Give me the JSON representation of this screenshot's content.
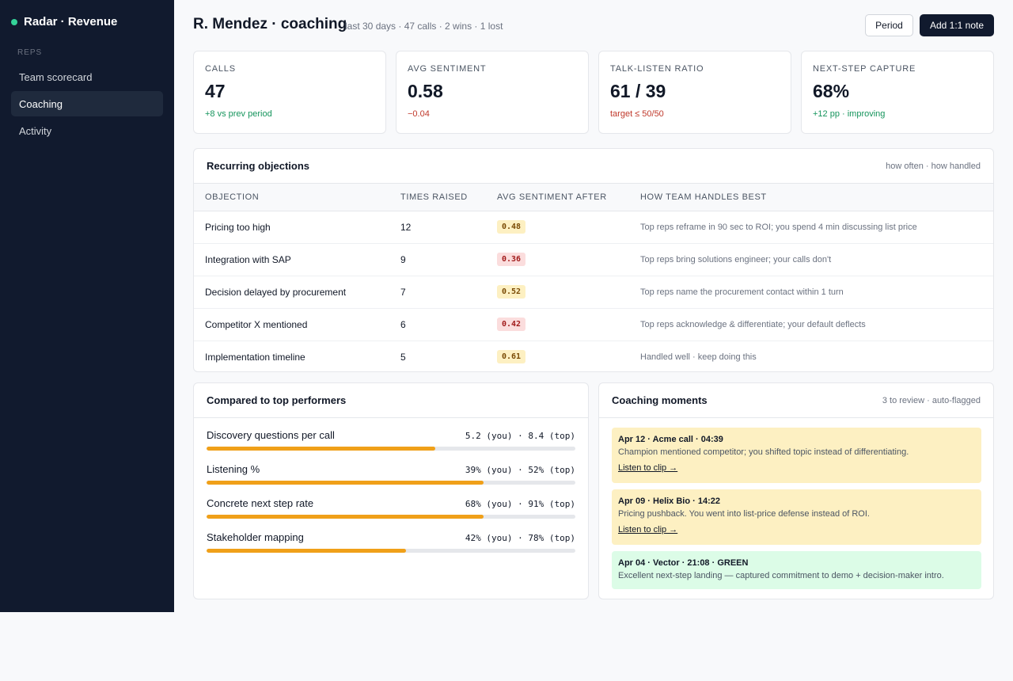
{
  "app": {
    "name": "Radar · Revenue",
    "status_color": "#34d399"
  },
  "sidebar": {
    "heading": "REPS",
    "items": [
      {
        "label": "Team scorecard",
        "active": false
      },
      {
        "label": "Coaching",
        "active": true
      },
      {
        "label": "Activity",
        "active": false
      }
    ]
  },
  "header": {
    "title": "R. Mendez · coaching",
    "subtitle": "last 30 days · 47 calls · 2 wins · 1 lost",
    "period_button": "Period",
    "note_button": "Add 1:1 note"
  },
  "stats": [
    {
      "label": "CALLS",
      "value": "47",
      "delta": "+8 vs prev period",
      "trend": "positive"
    },
    {
      "label": "AVG SENTIMENT",
      "value": "0.58",
      "delta": "−0.04",
      "trend": "negative"
    },
    {
      "label": "TALK-LISTEN RATIO",
      "value": "61 / 39",
      "delta": "target ≤ 50/50",
      "trend": "negative"
    },
    {
      "label": "NEXT-STEP CAPTURE",
      "value": "68%",
      "delta": "+12 pp · improving",
      "trend": "positive"
    }
  ],
  "objections": {
    "title": "Recurring objections",
    "note": "how often · how handled",
    "columns": [
      "OBJECTION",
      "TIMES RAISED",
      "AVG SENTIMENT AFTER",
      "HOW TEAM HANDLES BEST"
    ],
    "rows": [
      {
        "objection": "Pricing too high",
        "times": "12",
        "sentiment": "0.48",
        "severity": "warn",
        "how": "Top reps reframe in 90 sec to ROI; you spend 4 min discussing list price"
      },
      {
        "objection": "Integration with SAP",
        "times": "9",
        "sentiment": "0.36",
        "severity": "bad",
        "how": "Top reps bring solutions engineer; your calls don't"
      },
      {
        "objection": "Decision delayed by procurement",
        "times": "7",
        "sentiment": "0.52",
        "severity": "warn",
        "how": "Top reps name the procurement contact within 1 turn"
      },
      {
        "objection": "Competitor X mentioned",
        "times": "6",
        "sentiment": "0.42",
        "severity": "bad",
        "how": "Top reps acknowledge & differentiate; your default deflects"
      },
      {
        "objection": "Implementation timeline",
        "times": "5",
        "sentiment": "0.61",
        "severity": "warn",
        "how": "Handled well · keep doing this"
      }
    ]
  },
  "comparison": {
    "title": "Compared to top performers",
    "metrics": [
      {
        "name": "Discovery questions per call",
        "value": "5.2 (you) · 8.4 (top)",
        "progress": 0.62
      },
      {
        "name": "Listening %",
        "value": "39% (you) · 52% (top)",
        "progress": 0.75
      },
      {
        "name": "Concrete next step rate",
        "value": "68% (you) · 91% (top)",
        "progress": 0.75
      },
      {
        "name": "Stakeholder mapping",
        "value": "42% (you) · 78% (top)",
        "progress": 0.54
      }
    ]
  },
  "moments": {
    "title": "Coaching moments",
    "note": "3 to review · auto-flagged",
    "items": [
      {
        "title": "Apr 12 · Acme call · 04:39",
        "desc": "Champion mentioned competitor; you shifted topic instead of differentiating.",
        "link": "Listen to clip →",
        "tone": "warn"
      },
      {
        "title": "Apr 09 · Helix Bio · 14:22",
        "desc": "Pricing pushback. You went into list-price defense instead of ROI.",
        "link": "Listen to clip →",
        "tone": "warn"
      },
      {
        "title": "Apr 04 · Vector · 21:08 · GREEN",
        "desc": "Excellent next-step landing — captured commitment to demo + decision-maker intro.",
        "link": "",
        "tone": "good"
      }
    ]
  }
}
